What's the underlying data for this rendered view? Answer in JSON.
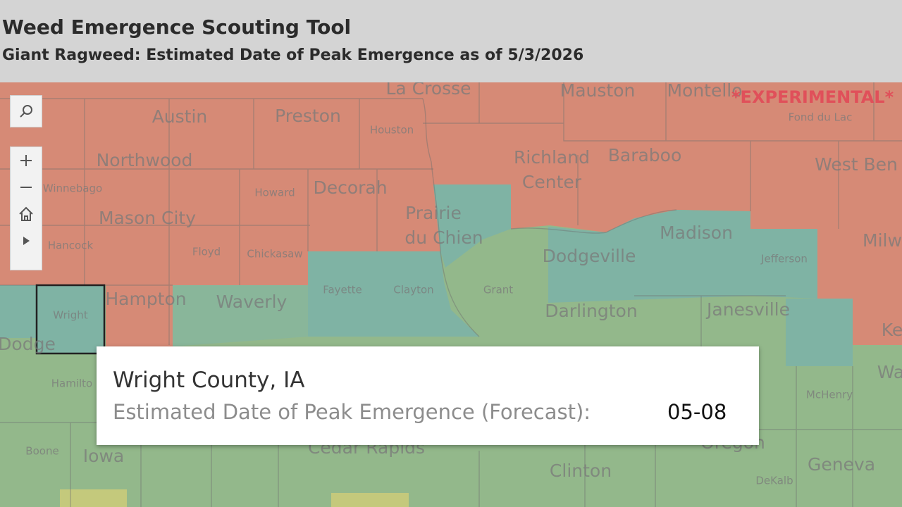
{
  "header": {
    "title": "Weed Emergence Scouting Tool",
    "subtitle": "Giant Ragweed: Estimated Date of Peak Emergence as of 5/3/2026"
  },
  "map": {
    "badge": "*EXPERIMENTAL*",
    "places": [
      "La Crosse",
      "Mauston",
      "Montello",
      "Fond du Lac",
      "Austin",
      "Preston",
      "Houston",
      "Northwood",
      "Richland",
      "Center",
      "Baraboo",
      "West Ben",
      "Winnebago",
      "Howard",
      "Decorah",
      "Prairie",
      "du Chien",
      "Mason City",
      "Madison",
      "Milw",
      "Hancock",
      "Floyd",
      "Chickasaw",
      "Dodgeville",
      "Jefferson",
      "Hampton",
      "Waverly",
      "Fayette",
      "Clayton",
      "Grant",
      "Darlington",
      "Janesville",
      "Wright",
      "Ke",
      "Dodge",
      "Hamilto",
      "McHenry",
      "Wa",
      "Boone",
      "Iowa",
      "Cedar Rapids",
      "Clinton",
      "Geneva",
      "DeKalb",
      "Oregon"
    ]
  },
  "tooltip": {
    "title": "Wright County, IA",
    "field": "Estimated Date of Peak Emergence (Forecast):",
    "value": "05-08"
  }
}
